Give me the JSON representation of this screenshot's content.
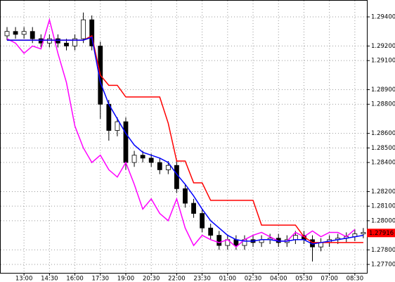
{
  "chart_data": {
    "type": "candlestick",
    "categories": [
      null,
      null,
      "13:00",
      null,
      null,
      "14:30",
      null,
      null,
      "16:00",
      null,
      null,
      "17:30",
      null,
      null,
      "19:00",
      null,
      null,
      "20:30",
      null,
      null,
      "22:00",
      null,
      null,
      "23:30",
      null,
      null,
      "01:00",
      null,
      null,
      "02:30",
      null,
      null,
      "04:00",
      null,
      null,
      "05:30",
      null,
      null,
      "07:00",
      null,
      null,
      "08:30",
      null
    ],
    "open": [
      1.2927,
      1.293,
      1.2928,
      1.293,
      1.2925,
      1.2922,
      1.2925,
      1.2922,
      1.292,
      1.2925,
      1.2938,
      1.292,
      1.288,
      1.2862,
      1.2868,
      1.284,
      1.2845,
      1.2843,
      1.284,
      1.2835,
      1.2838,
      1.2822,
      1.2812,
      1.2805,
      1.2795,
      1.279,
      1.2783,
      1.2787,
      1.2783,
      1.2787,
      1.2785,
      1.2787,
      1.2788,
      1.2785,
      1.2787,
      1.279,
      1.2787,
      1.2782,
      1.2785,
      1.2787,
      1.2788,
      1.2789,
      1.2791
    ],
    "high": [
      1.2933,
      1.2933,
      1.2933,
      1.2933,
      1.2928,
      1.2928,
      1.2928,
      1.2925,
      1.2928,
      1.2943,
      1.2941,
      1.2923,
      1.2883,
      1.2871,
      1.2871,
      1.2848,
      1.2848,
      1.2846,
      1.2843,
      1.2841,
      1.2841,
      1.2825,
      1.2815,
      1.2808,
      1.2798,
      1.2793,
      1.279,
      1.279,
      1.279,
      1.279,
      1.279,
      1.2791,
      1.2791,
      1.279,
      1.2793,
      1.2793,
      1.279,
      1.2788,
      1.279,
      1.2791,
      1.2792,
      1.2794,
      1.2795
    ],
    "low": [
      1.2924,
      1.2925,
      1.2925,
      1.2922,
      1.2919,
      1.2919,
      1.2919,
      1.2917,
      1.2917,
      1.2922,
      1.2917,
      1.287,
      1.2855,
      1.2858,
      1.2835,
      1.2837,
      1.284,
      1.2837,
      1.2832,
      1.2832,
      1.2819,
      1.2809,
      1.2802,
      1.2792,
      1.2787,
      1.278,
      1.278,
      1.278,
      1.278,
      1.2782,
      1.2782,
      1.2784,
      1.2782,
      1.2782,
      1.2784,
      1.2784,
      1.2772,
      1.2779,
      1.2782,
      1.2784,
      1.2785,
      1.2786,
      1.2788
    ],
    "close": [
      1.293,
      1.2928,
      1.293,
      1.2925,
      1.2922,
      1.2925,
      1.2922,
      1.292,
      1.2925,
      1.2938,
      1.292,
      1.288,
      1.2862,
      1.2868,
      1.284,
      1.2845,
      1.2843,
      1.284,
      1.2835,
      1.2838,
      1.2822,
      1.2812,
      1.2805,
      1.2795,
      1.279,
      1.2783,
      1.2787,
      1.2783,
      1.2787,
      1.2785,
      1.2787,
      1.2788,
      1.2785,
      1.2787,
      1.279,
      1.2787,
      1.2782,
      1.2785,
      1.2787,
      1.2788,
      1.2789,
      1.2791,
      1.2792
    ],
    "up_color": "#ffffff",
    "down_color": "#000000",
    "series": [
      {
        "color": "#ff00ff",
        "values": [
          1.2925,
          1.2922,
          1.2915,
          1.292,
          1.2918,
          1.2938,
          1.2915,
          1.2895,
          1.2865,
          1.285,
          1.284,
          1.2845,
          1.2835,
          1.283,
          1.284,
          1.2825,
          1.2808,
          1.2815,
          1.2805,
          1.28,
          1.2815,
          1.2795,
          1.2783,
          1.279,
          1.2787,
          1.2785,
          1.2787,
          1.2782,
          1.2787,
          1.279,
          1.2792,
          1.2789,
          1.2786,
          1.2786,
          1.2792,
          1.2789,
          1.2793,
          1.2789,
          1.2792,
          1.2792,
          1.2789,
          1.2794,
          null
        ]
      },
      {
        "color": "#ff0000",
        "values": [
          1.2924,
          1.2924,
          1.2924,
          1.2924,
          1.2924,
          1.2924,
          1.2924,
          1.2924,
          1.2924,
          1.2924,
          1.2927,
          1.29,
          1.2893,
          1.2893,
          1.2885,
          1.2885,
          1.2885,
          1.2885,
          1.2885,
          1.2867,
          1.2841,
          1.2841,
          1.2826,
          1.2826,
          1.2814,
          1.2814,
          1.2814,
          1.2814,
          1.2814,
          1.2814,
          1.2797,
          1.2797,
          1.2797,
          1.2797,
          1.2797,
          1.2789,
          1.2785,
          1.2785,
          1.2785,
          1.2785,
          1.2785,
          1.2785,
          1.2785
        ]
      },
      {
        "color": "#0000ff",
        "values": [
          1.2924,
          1.2924,
          1.2924,
          1.2924,
          1.2924,
          1.2924,
          1.2924,
          1.2924,
          1.2924,
          1.2924,
          1.2926,
          1.2895,
          1.288,
          1.287,
          1.286,
          1.2852,
          1.2847,
          1.2845,
          1.2843,
          1.284,
          1.2832,
          1.2825,
          1.2817,
          1.2808,
          1.28,
          1.2795,
          1.279,
          1.2787,
          1.2786,
          1.2786,
          1.2787,
          1.2787,
          1.2786,
          1.2786,
          1.2787,
          1.2787,
          1.2784,
          1.2785,
          1.2786,
          1.2787,
          1.2788,
          1.2789,
          1.279
        ]
      }
    ],
    "ylim": [
      1.27642,
      1.29516
    ],
    "yticks": [
      {
        "value": 1.294,
        "label": "1.29400"
      },
      {
        "value": 1.292,
        "label": "1.29200"
      },
      {
        "value": 1.291,
        "label": "1.29100"
      },
      {
        "value": 1.289,
        "label": "1.28900"
      },
      {
        "value": 1.288,
        "label": "1.28800"
      },
      {
        "value": 1.286,
        "label": "1.28600"
      },
      {
        "value": 1.285,
        "label": "1.28500"
      },
      {
        "value": 1.284,
        "label": "1.28400"
      },
      {
        "value": 1.282,
        "label": "1.28200"
      },
      {
        "value": 1.281,
        "label": "1.28100"
      },
      {
        "value": 1.28,
        "label": "1.28000"
      },
      {
        "value": 1.278,
        "label": "1.27800"
      },
      {
        "value": 1.277,
        "label": "1.27700"
      }
    ],
    "last_price": {
      "value": 1.27916,
      "label": "1.27916"
    },
    "grid": true
  }
}
